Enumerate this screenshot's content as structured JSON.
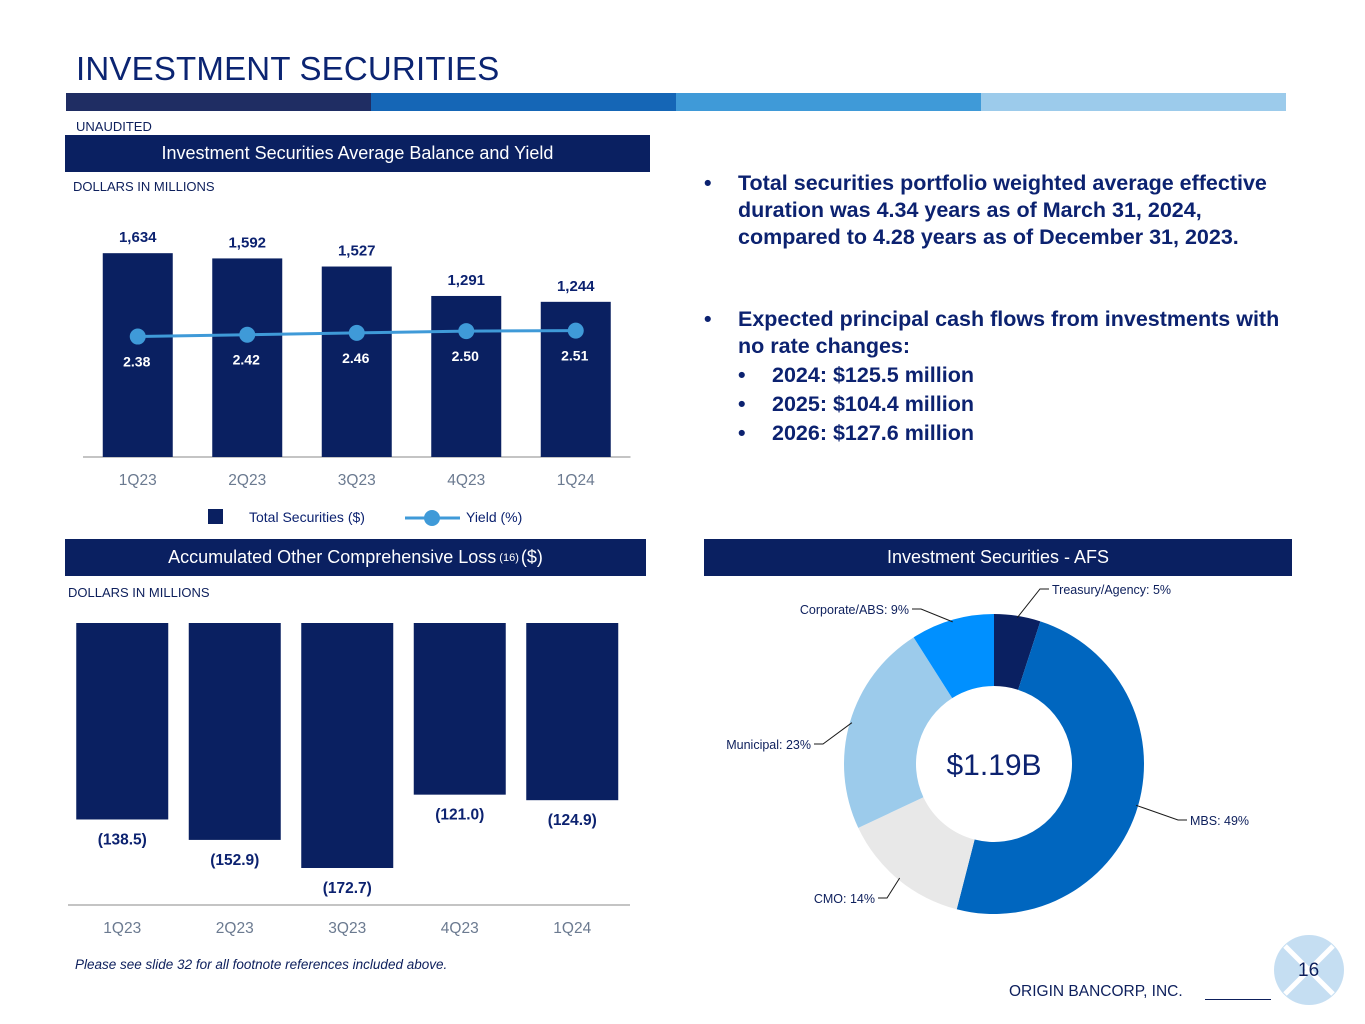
{
  "page": {
    "title": "INVESTMENT SECURITIES",
    "unaudited": "UNAUDITED",
    "footnote": "Please see slide 32 for all footnote references included above.",
    "company": "ORIGIN BANCORP, INC.",
    "page_number": "16",
    "stripe_colors": [
      "#1f2d63",
      "#1566b6",
      "#3f9ad8",
      "#9ccbeb"
    ]
  },
  "panels": {
    "balance_yield": {
      "title": "Investment Securities Average Balance and Yield",
      "units": "DOLLARS IN MILLIONS"
    },
    "aoci": {
      "title": "Accumulated Other Comprehensive Loss",
      "footnote_ref": "(16)",
      "suffix": "($)",
      "units": "DOLLARS IN MILLIONS"
    },
    "afs": {
      "title": "Investment Securities - AFS"
    }
  },
  "bullets": {
    "duration": "Total securities portfolio weighted average effective duration was 4.34 years as of March 31, 2024, compared to 4.28 years as of December 31, 2023.",
    "cash_flows": "Expected principal cash flows from investments with no rate changes:",
    "years": [
      "2024: $125.5 million",
      "2025: $104.4 million",
      "2026: $127.6 million"
    ]
  },
  "chart_data": [
    {
      "id": "balance_yield",
      "type": "bar",
      "title": "Investment Securities Average Balance and Yield",
      "categories": [
        "1Q23",
        "2Q23",
        "3Q23",
        "4Q23",
        "1Q24"
      ],
      "series": [
        {
          "name": "Total Securities ($)",
          "type": "bar",
          "values": [
            1634,
            1592,
            1527,
            1291,
            1244
          ],
          "labels": [
            "1,634",
            "1,592",
            "1,527",
            "1,291",
            "1,244"
          ],
          "color": "#0a2061"
        },
        {
          "name": "Yield (%)",
          "type": "line",
          "values": [
            2.38,
            2.42,
            2.46,
            2.5,
            2.51
          ],
          "labels": [
            "2.38",
            "2.42",
            "2.46",
            "2.50",
            "2.51"
          ],
          "color": "#3f9ad8"
        }
      ],
      "ylim": [
        0,
        1900
      ],
      "y2lim": [
        0,
        3.0
      ],
      "legend": "bottom"
    },
    {
      "id": "aoci",
      "type": "bar",
      "title": "Accumulated Other Comprehensive Loss (16) ($)",
      "categories": [
        "1Q23",
        "2Q23",
        "3Q23",
        "4Q23",
        "1Q24"
      ],
      "values": [
        -138.5,
        -152.9,
        -172.7,
        -121.0,
        -124.9
      ],
      "labels": [
        "(138.5)",
        "(152.9)",
        "(172.7)",
        "(121.0)",
        "(124.9)"
      ],
      "color": "#0a2061",
      "ylim": [
        -180,
        0
      ]
    },
    {
      "id": "afs",
      "type": "pie",
      "title": "Investment Securities - AFS",
      "center_label": "$1.19B",
      "slices": [
        {
          "label": "Treasury/Agency: 5%",
          "value": 5,
          "color": "#0a2061"
        },
        {
          "label": "MBS: 49%",
          "value": 49,
          "color": "#0066bf"
        },
        {
          "label": "CMO: 14%",
          "value": 14,
          "color": "#e8e8e8"
        },
        {
          "label": "Municipal: 23%",
          "value": 23,
          "color": "#9ccbeb"
        },
        {
          "label": "Corporate/ABS: 9%",
          "value": 9,
          "color": "#0090ff"
        }
      ]
    }
  ]
}
